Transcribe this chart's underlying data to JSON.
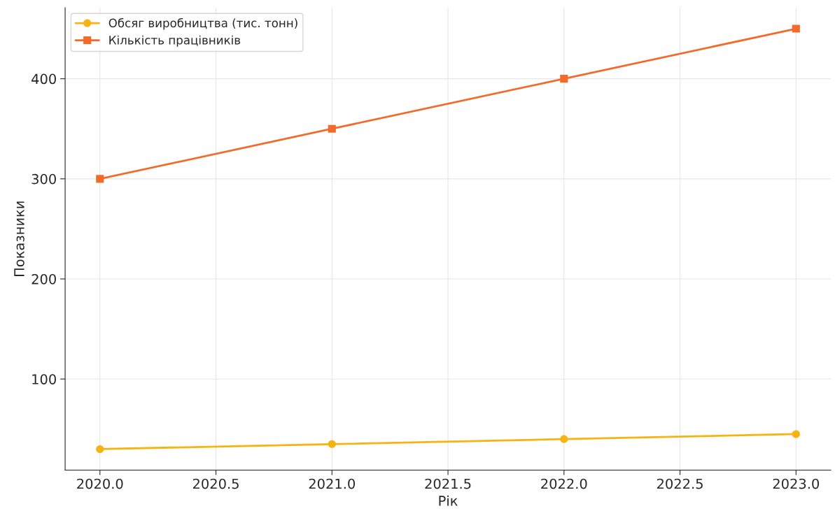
{
  "chart_data": {
    "type": "line",
    "xlabel": "Рік",
    "ylabel": "Показники",
    "x": [
      2020,
      2021,
      2022,
      2023
    ],
    "series": [
      {
        "name": "Обсяг виробництва (тис. тонн)",
        "color": "#f5b40f",
        "marker": "circle",
        "values": [
          30,
          35,
          40,
          45
        ]
      },
      {
        "name": "Кількість працівників",
        "color": "#f26b2b",
        "marker": "square",
        "values": [
          300,
          350,
          400,
          450
        ]
      }
    ],
    "xlim": [
      2019.85,
      2023.15
    ],
    "xticks": [
      {
        "value": 2020,
        "label": "2020.0"
      },
      2020.5,
      {
        "value": 2021,
        "label": "2021.0"
      },
      2021.5,
      {
        "value": 2022,
        "label": "2022.0"
      },
      2022.5,
      {
        "value": 2023,
        "label": "2023.0"
      }
    ],
    "ylim": [
      9,
      471
    ],
    "yticks": [
      100,
      200,
      300,
      400
    ],
    "grid": true,
    "legend": "top left",
    "line_style": "solid"
  }
}
